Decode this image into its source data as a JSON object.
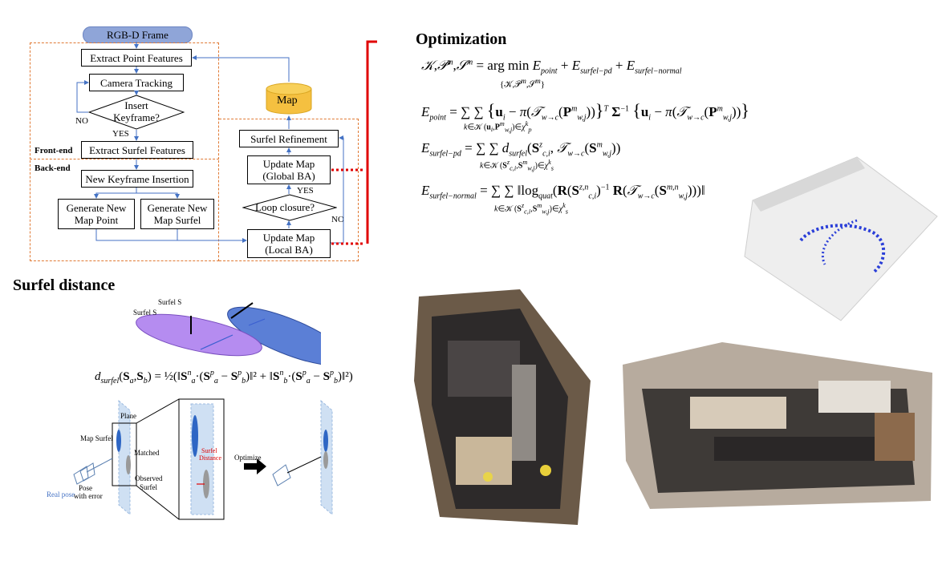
{
  "flowchart": {
    "rgbd_frame": "RGB-D Frame",
    "extract_point": "Extract Point Features",
    "camera_tracking": "Camera Tracking",
    "insert_keyframe_line1": "Insert",
    "insert_keyframe_line2": "Keyframe?",
    "no_label_left": "NO",
    "yes_label_mid": "YES",
    "front_end": "Front-end",
    "extract_surfel": "Extract Surfel Features",
    "map": "Map",
    "surfel_refinement": "Surfel Refinement",
    "update_map_global_line1": "Update Map",
    "update_map_global_line2": "(Global BA)",
    "yes_label_loop": "YES",
    "loop_closure": "Loop closure?",
    "no_label_loop": "NO",
    "back_end": "Back-end",
    "new_keyframe": "New Keyframe Insertion",
    "gen_point_line1": "Generate New",
    "gen_point_line2": "Map Point",
    "gen_surfel_line1": "Generate New",
    "gen_surfel_line2": "Map Surfel",
    "update_map_local_line1": "Update Map",
    "update_map_local_line2": "(Local BA)"
  },
  "optimization": {
    "title": "Optimization"
  },
  "surfel_distance": {
    "title": "Surfel distance",
    "surfel_b": "Surfel S",
    "surfel_a": "Surfel S",
    "plane": "Plane",
    "map_surfel": "Map Surfel",
    "matched": "Matched",
    "observed_line1": "Observed",
    "observed_line2": "Surfel",
    "real_pose": "Real pose",
    "pose_error_line1": "Pose",
    "pose_error_line2": "with error",
    "surfel_distance_line1": "Surfel",
    "surfel_distance_line2": "Distance",
    "optimize": "Optimize"
  },
  "colors": {
    "orange_dash": "#e07a35",
    "blue_arrow": "#4472c4",
    "red_link": "#e00000",
    "map_cylinder": "#f5c040",
    "purple_surfel": "#b58cf0",
    "blue_surfel": "#5b7fd6"
  }
}
